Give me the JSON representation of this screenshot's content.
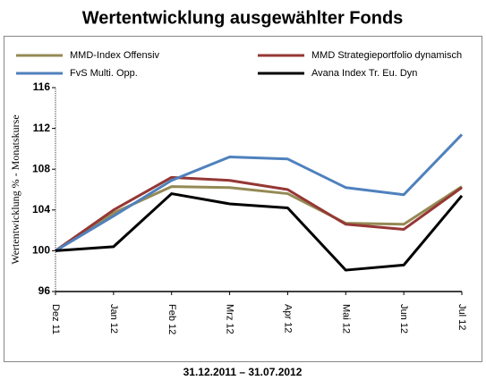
{
  "chart_data": {
    "type": "line",
    "title": "Wertentwicklung ausgewählter Fonds",
    "footer": "31.12.2011 – 31.07.2012",
    "y_label": "Wertentwicklung % - Monatskurse",
    "categories": [
      "Dez 11",
      "Jan 12",
      "Feb 12",
      "Mrz 12",
      "Apr 12",
      "Mai 12",
      "Jun 12",
      "Jul 12"
    ],
    "series": [
      {
        "name": "MMD-Index Offensiv",
        "color": "#948a54",
        "values": [
          100,
          103.7,
          106.3,
          106.2,
          105.6,
          102.7,
          102.6,
          106.3
        ]
      },
      {
        "name": "MMD Strategieportfolio dynamisch",
        "color": "#953735",
        "values": [
          100,
          104.0,
          107.2,
          106.9,
          106.0,
          102.6,
          102.1,
          106.2
        ]
      },
      {
        "name": "FvS Multi. Opp.",
        "color": "#4f81bd",
        "values": [
          100,
          103.4,
          106.9,
          109.2,
          109.0,
          106.2,
          105.5,
          111.4
        ]
      },
      {
        "name": "Avana Index Tr. Eu. Dyn",
        "color": "#000000",
        "values": [
          100,
          100.4,
          105.6,
          104.6,
          104.2,
          98.1,
          98.6,
          105.4
        ]
      }
    ],
    "ylim": [
      96,
      116
    ],
    "yticks": [
      96,
      100,
      104,
      108,
      112,
      116
    ],
    "grid": false,
    "legend": "top"
  }
}
